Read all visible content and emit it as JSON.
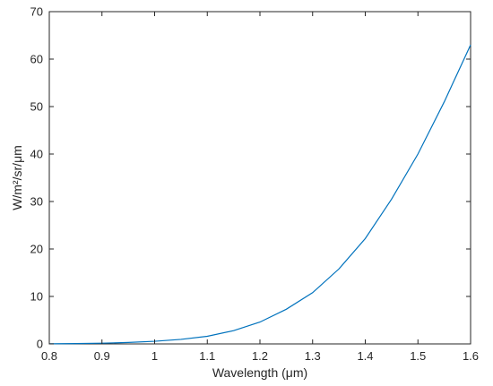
{
  "chart_data": {
    "type": "line",
    "title": "",
    "xlabel": "Wavelength (μm)",
    "ylabel": "W/m²/sr/μm",
    "xlim": [
      0.8,
      1.6
    ],
    "ylim": [
      0,
      70
    ],
    "x_ticks": [
      0.8,
      0.9,
      1,
      1.1,
      1.2,
      1.3,
      1.4,
      1.5,
      1.6
    ],
    "y_ticks": [
      0,
      10,
      20,
      30,
      40,
      50,
      60,
      70
    ],
    "x_tick_labels": [
      "0.8",
      "0.9",
      "1",
      "1.1",
      "1.2",
      "1.3",
      "1.4",
      "1.5",
      "1.6"
    ],
    "y_tick_labels": [
      "0",
      "10",
      "20",
      "30",
      "40",
      "50",
      "60",
      "70"
    ],
    "grid": false,
    "line_color": "#0072bd",
    "series": [
      {
        "x": [
          0.8,
          0.85,
          0.9,
          0.95,
          1.0,
          1.05,
          1.1,
          1.15,
          1.2,
          1.25,
          1.3,
          1.35,
          1.4,
          1.45,
          1.5,
          1.55,
          1.6
        ],
        "y": [
          0.02,
          0.07,
          0.15,
          0.3,
          0.55,
          0.95,
          1.6,
          2.8,
          4.6,
          7.3,
          10.8,
          15.8,
          22.2,
          30.5,
          40.0,
          51.0,
          63.0
        ]
      }
    ]
  }
}
